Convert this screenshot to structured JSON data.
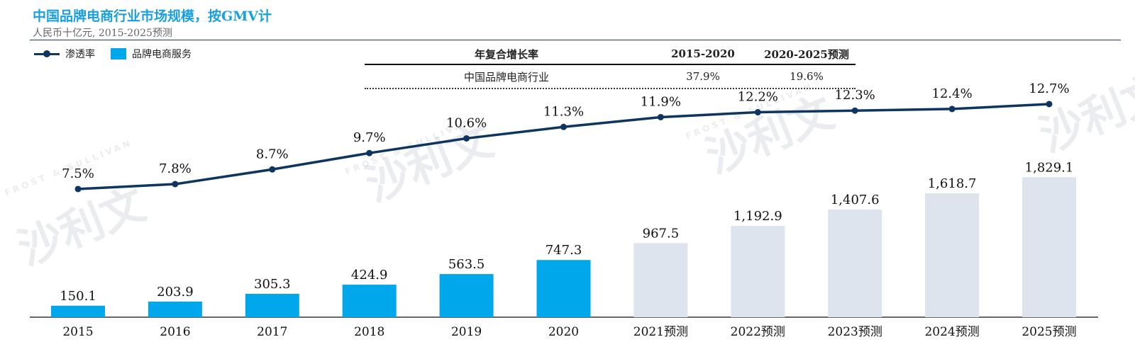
{
  "header": {
    "title": "中国品牌电商行业市场规模，按GMV计",
    "subtitle": "人民币十亿元, 2015-2025预测"
  },
  "legend": {
    "line_label": "渗透率",
    "bar_label": "品牌电商服务"
  },
  "cagr_table": {
    "header": [
      "年复合增长率",
      "2015-2020",
      "2020-2025预测"
    ],
    "rows": [
      {
        "name": "中国品牌电商行业",
        "v1": "37.9%",
        "v2": "19.6%"
      }
    ]
  },
  "watermark": {
    "text": "沙利文",
    "subtext": "FROST & SULLIVAN"
  },
  "colors": {
    "actual_bar": "#00a8eb",
    "forecast_bar": "#dde4ee",
    "line": "#0e3460"
  },
  "chart_data": {
    "type": "bar",
    "categories": [
      "2015",
      "2016",
      "2017",
      "2018",
      "2019",
      "2020",
      "2021预测",
      "2022预测",
      "2023预测",
      "2024预测",
      "2025预测"
    ],
    "series": [
      {
        "name": "品牌电商服务",
        "type": "bar",
        "values": [
          150.1,
          203.9,
          305.3,
          424.9,
          563.5,
          747.3,
          967.5,
          1192.9,
          1407.6,
          1618.7,
          1829.1
        ],
        "labels": [
          "150.1",
          "203.9",
          "305.3",
          "424.9",
          "563.5",
          "747.3",
          "967.5",
          "1,192.9",
          "1,407.6",
          "1,618.7",
          "1,829.1"
        ],
        "forecast": [
          false,
          false,
          false,
          false,
          false,
          false,
          true,
          true,
          true,
          true,
          true
        ]
      },
      {
        "name": "渗透率",
        "type": "line",
        "values": [
          7.5,
          7.8,
          8.7,
          9.7,
          10.6,
          11.3,
          11.9,
          12.2,
          12.3,
          12.4,
          12.7
        ],
        "labels": [
          "7.5%",
          "7.8%",
          "8.7%",
          "9.7%",
          "10.6%",
          "11.3%",
          "11.9%",
          "12.2%",
          "12.3%",
          "12.4%",
          "12.7%"
        ]
      }
    ],
    "bar_ylim": [
      0,
      2000
    ],
    "line_ylim": [
      0,
      14
    ],
    "grid": false,
    "legend_position": "top-left"
  }
}
